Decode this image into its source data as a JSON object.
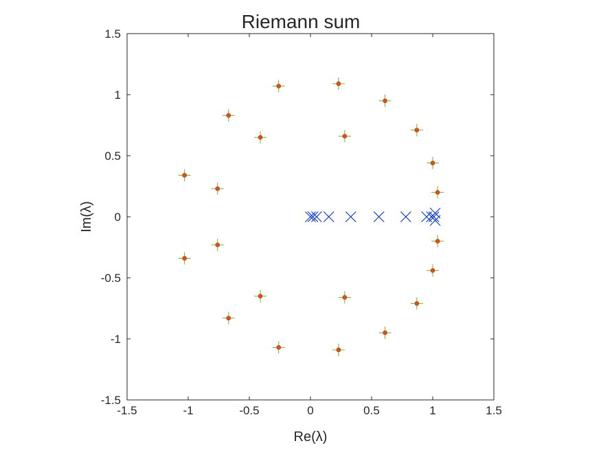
{
  "chart_data": {
    "type": "scatter",
    "title": "Riemann sum",
    "xlabel": "Re(λ)",
    "ylabel": "Im(λ)",
    "xlim": [
      -1.5,
      1.5
    ],
    "ylim": [
      -1.5,
      1.5
    ],
    "xticks": [
      -1.5,
      -1,
      -0.5,
      0,
      0.5,
      1,
      1.5
    ],
    "yticks": [
      -1.5,
      -1,
      -0.5,
      0,
      0.5,
      1,
      1.5
    ],
    "xtick_labels": [
      "-1.5",
      "-1",
      "-0.5",
      "0",
      "0.5",
      "1",
      "1.5"
    ],
    "ytick_labels": [
      "-1.5",
      "-1",
      "-0.5",
      "0",
      "0.5",
      "1",
      "1.5"
    ],
    "grid": false,
    "series": [
      {
        "marker": "plus",
        "color": "#77ac30",
        "x": [
          -1.03,
          -0.76,
          -0.67,
          -0.41,
          -0.26,
          0.23,
          0.28,
          0.61,
          0.87,
          1.0,
          1.04,
          -1.03,
          -0.76,
          -0.67,
          -0.41,
          -0.26,
          0.23,
          0.28,
          0.61,
          0.87,
          1.0,
          1.04
        ],
        "y": [
          0.34,
          0.23,
          0.83,
          0.65,
          1.07,
          1.09,
          0.66,
          0.95,
          0.71,
          0.44,
          0.2,
          -0.34,
          -0.23,
          -0.83,
          -0.65,
          -1.07,
          -1.09,
          -0.66,
          -0.95,
          -0.71,
          -0.44,
          -0.2
        ]
      },
      {
        "marker": "dot",
        "color": "#d95319",
        "x": [
          -1.03,
          -0.76,
          -0.67,
          -0.41,
          -0.26,
          0.23,
          0.28,
          0.61,
          0.87,
          1.0,
          1.04,
          -1.03,
          -0.76,
          -0.67,
          -0.41,
          -0.26,
          0.23,
          0.28,
          0.61,
          0.87,
          1.0,
          1.04
        ],
        "y": [
          0.34,
          0.23,
          0.83,
          0.65,
          1.07,
          1.09,
          0.66,
          0.95,
          0.71,
          0.44,
          0.2,
          -0.34,
          -0.23,
          -0.83,
          -0.65,
          -1.07,
          -1.09,
          -0.66,
          -0.95,
          -0.71,
          -0.44,
          -0.2
        ]
      },
      {
        "marker": "x",
        "color": "#0033cc",
        "x": [
          0.0,
          0.02,
          0.05,
          0.15,
          0.33,
          0.56,
          0.78,
          0.95,
          0.99,
          1.01,
          1.02,
          1.02
        ],
        "y": [
          0,
          0,
          0,
          0,
          0,
          0,
          0,
          0,
          0,
          0,
          0.03,
          -0.03
        ]
      }
    ]
  }
}
